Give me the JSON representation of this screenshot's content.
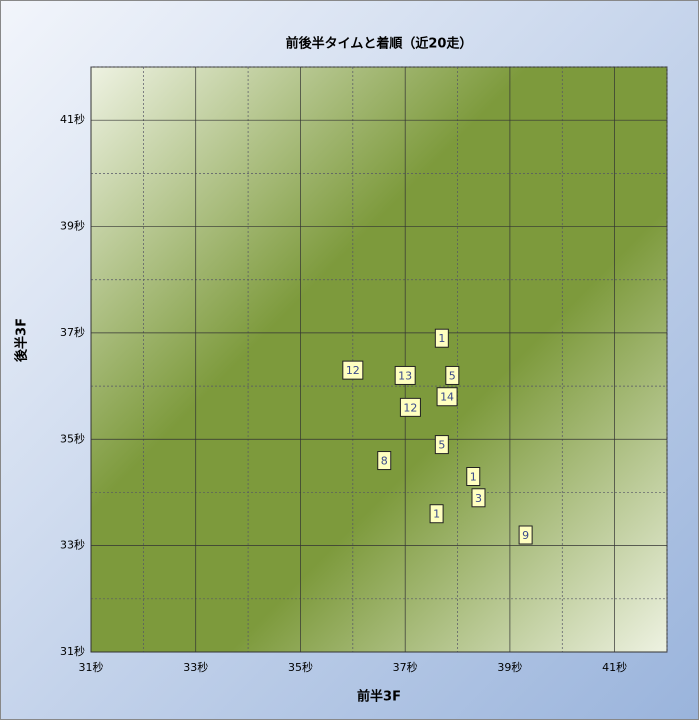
{
  "chart_data": {
    "type": "scatter",
    "title": "前後半タイムと着順（近20走）",
    "x_label": "前半3F",
    "y_label": "後半3F",
    "xlim": [
      31,
      42
    ],
    "ylim": [
      31,
      42
    ],
    "xticks": [
      {
        "value": 31,
        "label": "31秒"
      },
      {
        "value": 33,
        "label": "33秒"
      },
      {
        "value": 35,
        "label": "35秒"
      },
      {
        "value": 37,
        "label": "37秒"
      },
      {
        "value": 39,
        "label": "39秒"
      },
      {
        "value": 41,
        "label": "41秒"
      }
    ],
    "yticks": [
      {
        "value": 31,
        "label": "31秒"
      },
      {
        "value": 33,
        "label": "33秒"
      },
      {
        "value": 35,
        "label": "35秒"
      },
      {
        "value": 37,
        "label": "37秒"
      },
      {
        "value": 39,
        "label": "39秒"
      },
      {
        "value": 41,
        "label": "41秒"
      }
    ],
    "minor_xticks": [
      32,
      34,
      36,
      38,
      40,
      42
    ],
    "minor_yticks": [
      32,
      34,
      36,
      38,
      40,
      42
    ],
    "grid": true,
    "series": [
      {
        "color": "#ffffc0",
        "x": [
          37.7,
          36.0,
          37.0,
          37.9,
          37.1,
          37.8,
          37.7,
          36.6,
          38.3,
          38.4,
          37.6,
          39.3
        ],
        "values": [
          36.9,
          36.3,
          36.2,
          36.2,
          35.6,
          35.8,
          34.9,
          34.6,
          34.3,
          33.9,
          33.6,
          33.2
        ],
        "labels": [
          1,
          12,
          13,
          5,
          12,
          14,
          5,
          8,
          1,
          3,
          1,
          9
        ]
      }
    ]
  }
}
